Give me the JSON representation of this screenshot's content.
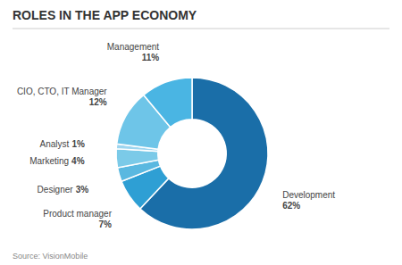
{
  "chart_data": {
    "type": "pie",
    "title": "ROLES IN THE APP ECONOMY",
    "source": "Source: VisionMobile",
    "categories": [
      "Development",
      "Product manager",
      "Designer",
      "Marketing",
      "Analyst",
      "CIO, CTO, IT Manager",
      "Management"
    ],
    "values": [
      62,
      7,
      3,
      4,
      1,
      12,
      11
    ],
    "value_labels": [
      "62%",
      "7%",
      "3%",
      "4%",
      "1%",
      "12%",
      "11%"
    ],
    "colors": [
      "#1a6ea8",
      "#2e9fd4",
      "#5ab8e0",
      "#7bcae8",
      "#9dd5ef",
      "#6ec5e8",
      "#4ab5e3"
    ],
    "data_labels": true
  }
}
